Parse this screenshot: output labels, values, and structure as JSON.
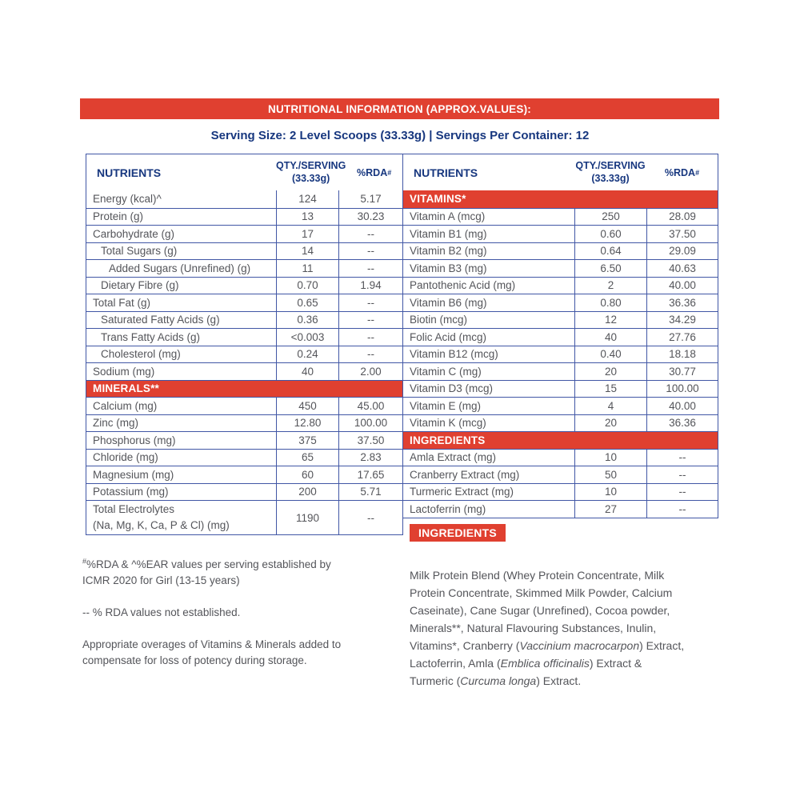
{
  "title_bar": "NUTRITIONAL INFORMATION (APPROX.VALUES):",
  "serving_line": "Serving Size: 2 Level Scoops (33.33g) | Servings Per Container: 12",
  "colors": {
    "accent_red": "#E04030",
    "heading_navy": "#17377F",
    "table_border_blue": "#4156A5",
    "body_text_gray": "#54555A"
  },
  "header": {
    "nutrients": "NUTRIENTS",
    "qty_line1": "QTY./SERVING",
    "qty_line2": "(33.33g)",
    "rda_label": "%RDA",
    "rda_sup": "#"
  },
  "left_table": {
    "rows": [
      {
        "label": "Energy (kcal)^",
        "qty": "124",
        "rda": "5.17",
        "indent": 0
      },
      {
        "label": "Protein (g)",
        "qty": "13",
        "rda": "30.23",
        "indent": 0
      },
      {
        "label": "Carbohydrate (g)",
        "qty": "17",
        "rda": "--",
        "indent": 0
      },
      {
        "label": "Total Sugars (g)",
        "qty": "14",
        "rda": "--",
        "indent": 1
      },
      {
        "label": "Added Sugars (Unrefined) (g)",
        "qty": "11",
        "rda": "--",
        "indent": 2
      },
      {
        "label": "Dietary Fibre (g)",
        "qty": "0.70",
        "rda": "1.94",
        "indent": 1
      },
      {
        "label": "Total Fat (g)",
        "qty": "0.65",
        "rda": "--",
        "indent": 0
      },
      {
        "label": "Saturated Fatty Acids (g)",
        "qty": "0.36",
        "rda": "--",
        "indent": 1
      },
      {
        "label": "Trans Fatty Acids (g)",
        "qty": "<0.003",
        "rda": "--",
        "indent": 1
      },
      {
        "label": "Cholesterol (mg)",
        "qty": "0.24",
        "rda": "--",
        "indent": 1
      },
      {
        "label": "Sodium (mg)",
        "qty": "40",
        "rda": "2.00",
        "indent": 0
      },
      {
        "section": "MINERALS**"
      },
      {
        "label": "Calcium (mg)",
        "qty": "450",
        "rda": "45.00",
        "indent": 0
      },
      {
        "label": "Zinc (mg)",
        "qty": "12.80",
        "rda": "100.00",
        "indent": 0
      },
      {
        "label": "Phosphorus (mg)",
        "qty": "375",
        "rda": "37.50",
        "indent": 0
      },
      {
        "label": "Chloride (mg)",
        "qty": "65",
        "rda": "2.83",
        "indent": 0
      },
      {
        "label": "Magnesium (mg)",
        "qty": "60",
        "rda": "17.65",
        "indent": 0
      },
      {
        "label": "Potassium (mg)",
        "qty": "200",
        "rda": "5.71",
        "indent": 0
      },
      {
        "label": "Total Electrolytes",
        "label2": "(Na, Mg, K, Ca, P & Cl) (mg)",
        "qty": "1190",
        "rda": "--",
        "indent": 0,
        "tall": true
      }
    ]
  },
  "right_table": {
    "rows": [
      {
        "section": "VITAMINS*"
      },
      {
        "label": "Vitamin A (mcg)",
        "qty": "250",
        "rda": "28.09",
        "indent": 0
      },
      {
        "label": "Vitamin B1 (mg)",
        "qty": "0.60",
        "rda": "37.50",
        "indent": 0
      },
      {
        "label": "Vitamin B2 (mg)",
        "qty": "0.64",
        "rda": "29.09",
        "indent": 0
      },
      {
        "label": "Vitamin B3 (mg)",
        "qty": "6.50",
        "rda": "40.63",
        "indent": 0
      },
      {
        "label": "Pantothenic Acid (mg)",
        "qty": "2",
        "rda": "40.00",
        "indent": 0
      },
      {
        "label": "Vitamin B6 (mg)",
        "qty": "0.80",
        "rda": "36.36",
        "indent": 0
      },
      {
        "label": "Biotin (mcg)",
        "qty": "12",
        "rda": "34.29",
        "indent": 0
      },
      {
        "label": "Folic Acid (mcg)",
        "qty": "40",
        "rda": "27.76",
        "indent": 0
      },
      {
        "label": "Vitamin B12 (mcg)",
        "qty": "0.40",
        "rda": "18.18",
        "indent": 0
      },
      {
        "label": "Vitamin C (mg)",
        "qty": "20",
        "rda": "30.77",
        "indent": 0
      },
      {
        "label": "Vitamin D3 (mcg)",
        "qty": "15",
        "rda": "100.00",
        "indent": 0
      },
      {
        "label": "Vitamin E (mg)",
        "qty": "4",
        "rda": "40.00",
        "indent": 0
      },
      {
        "label": "Vitamin K (mcg)",
        "qty": "20",
        "rda": "36.36",
        "indent": 0
      },
      {
        "section": "INGREDIENTS"
      },
      {
        "label": "Amla Extract (mg)",
        "qty": "10",
        "rda": "--",
        "indent": 0
      },
      {
        "label": "Cranberry Extract (mg)",
        "qty": "50",
        "rda": "--",
        "indent": 0
      },
      {
        "label": "Turmeric Extract (mg)",
        "qty": "10",
        "rda": "--",
        "indent": 0
      },
      {
        "label": "Lactoferrin (mg)",
        "qty": "27",
        "rda": "--",
        "indent": 0
      }
    ]
  },
  "footnotes": {
    "sup1": "#",
    "line1": "%RDA & ^%EAR values per serving established by\nICMR 2020 for Girl (13-15 years)",
    "line2": "-- % RDA values not established.",
    "line3": "Appropriate overages of Vitamins & Minerals added to\ncompensate for loss of potency during storage."
  },
  "ingredients": {
    "heading": "INGREDIENTS",
    "segments": [
      {
        "text": "Milk Protein Blend (Whey Protein Concentrate, Milk\nProtein Concentrate, Skimmed Milk Powder, Calcium\nCaseinate), Cane Sugar (Unrefined), Cocoa powder,\nMinerals**, Natural Flavouring Substances, Inulin,\nVitamins*, Cranberry (",
        "italic": false
      },
      {
        "text": "Vaccinium macrocarpon",
        "italic": true
      },
      {
        "text": ") Extract,\nLactoferrin, Amla (",
        "italic": false
      },
      {
        "text": "Emblica officinalis",
        "italic": true
      },
      {
        "text": ") Extract &\nTurmeric (",
        "italic": false
      },
      {
        "text": "Curcuma longa",
        "italic": true
      },
      {
        "text": ") Extract.",
        "italic": false
      }
    ]
  }
}
